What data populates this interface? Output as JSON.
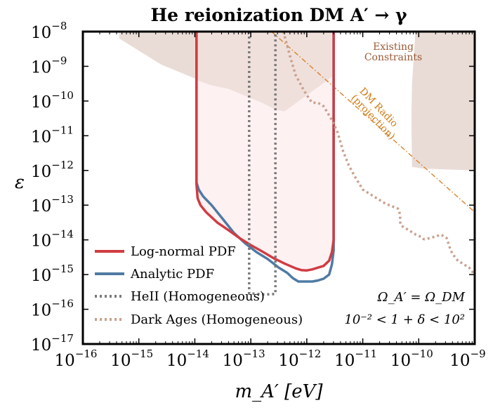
{
  "chart_data": {
    "type": "line",
    "title": "He reionization DM A′ → γ",
    "xlabel": "m_A′ [eV]",
    "ylabel": "ε",
    "x_scale": "log",
    "y_scale": "log",
    "x_log10_range": [
      -16,
      -9
    ],
    "y_log10_range": [
      -17,
      -8
    ],
    "x_ticks": [
      {
        "base": "10",
        "exp": "−16"
      },
      {
        "base": "10",
        "exp": "−15"
      },
      {
        "base": "10",
        "exp": "−14"
      },
      {
        "base": "10",
        "exp": "−13"
      },
      {
        "base": "10",
        "exp": "−12"
      },
      {
        "base": "10",
        "exp": "−11"
      },
      {
        "base": "10",
        "exp": "−10"
      },
      {
        "base": "10",
        "exp": "−9"
      }
    ],
    "y_ticks": [
      {
        "base": "10",
        "exp": "−8"
      },
      {
        "base": "10",
        "exp": "−9"
      },
      {
        "base": "10",
        "exp": "−10"
      },
      {
        "base": "10",
        "exp": "−11"
      },
      {
        "base": "10",
        "exp": "−12"
      },
      {
        "base": "10",
        "exp": "−13"
      },
      {
        "base": "10",
        "exp": "−14"
      },
      {
        "base": "10",
        "exp": "−15"
      },
      {
        "base": "10",
        "exp": "−16"
      },
      {
        "base": "10",
        "exp": "−17"
      }
    ],
    "grid": false,
    "legend_position": "bottom-left",
    "colors": {
      "lognormal": "#d03c42",
      "analytic": "#4f7aa3",
      "heii": "#7a7a7a",
      "darkages": "#c9a08c",
      "constraints": "#e9dcd6",
      "excluded": "#fdeef0",
      "dmradio": "#d9822b"
    },
    "series": [
      {
        "name": "Log-normal PDF",
        "style": "solid",
        "x_log10": [
          -13.97,
          -13.97,
          -13.95,
          -13.9,
          -13.8,
          -13.6,
          -13.4,
          -13.2,
          -13.0,
          -12.8,
          -12.6,
          -12.4,
          -12.2,
          -12.1,
          -12.0,
          -11.9,
          -11.8,
          -11.7,
          -11.6,
          -11.55,
          -11.52,
          -11.52
        ],
        "y_log10": [
          -8.0,
          -12.4,
          -12.8,
          -13.0,
          -13.2,
          -13.5,
          -13.72,
          -13.95,
          -14.15,
          -14.33,
          -14.52,
          -14.68,
          -14.82,
          -14.87,
          -14.88,
          -14.85,
          -14.8,
          -14.75,
          -14.6,
          -14.35,
          -14.0,
          -8.0
        ]
      },
      {
        "name": "Analytic PDF",
        "style": "solid",
        "x_log10": [
          -13.97,
          -13.97,
          -13.93,
          -13.85,
          -13.7,
          -13.5,
          -13.3,
          -13.1,
          -12.9,
          -12.7,
          -12.5,
          -12.35,
          -12.25,
          -12.15,
          -12.0,
          -11.9,
          -11.8,
          -11.7,
          -11.6,
          -11.55,
          -11.52,
          -11.52
        ],
        "y_log10": [
          -8.0,
          -12.35,
          -12.55,
          -12.75,
          -13.0,
          -13.4,
          -13.8,
          -14.1,
          -14.35,
          -14.55,
          -14.8,
          -14.95,
          -15.1,
          -15.2,
          -15.2,
          -15.2,
          -15.17,
          -15.12,
          -15.0,
          -14.7,
          -14.3,
          -8.0
        ]
      },
      {
        "name": "HeII (Homogeneous)",
        "style": "dotted",
        "x_log10": [
          -13.03,
          -13.03,
          -12.92,
          -12.78,
          -12.63,
          -12.56,
          -12.56
        ],
        "y_log10": [
          -8.0,
          -15.55,
          -15.55,
          -15.57,
          -15.57,
          -15.55,
          -8.0
        ]
      },
      {
        "name": "Dark Ages (Homogeneous)",
        "style": "dotted",
        "x_log10": [
          -12.41,
          -12.41,
          -12.3,
          -12.2,
          -12.05,
          -11.95,
          -11.9,
          -11.8,
          -11.7,
          -11.55,
          -11.45,
          -11.35,
          -11.25,
          -11.15,
          -11.0,
          -10.8,
          -10.6,
          -10.45,
          -10.37,
          -10.35,
          -10.34,
          -10.33,
          -10.33,
          -10.3,
          -10.2,
          -10.05,
          -9.95,
          -9.92,
          -9.9,
          -9.8,
          -9.6,
          -9.5,
          -9.45,
          -9.4,
          -9.3,
          -9.1,
          -9.0
        ],
        "y_log10": [
          -8.0,
          -8.05,
          -8.7,
          -9.25,
          -9.7,
          -9.95,
          -10.05,
          -10.05,
          -10.15,
          -10.55,
          -10.9,
          -11.45,
          -11.85,
          -12.15,
          -12.55,
          -12.75,
          -12.95,
          -13.05,
          -13.1,
          -13.15,
          -13.25,
          -13.4,
          -13.55,
          -13.6,
          -13.7,
          -13.85,
          -13.92,
          -13.97,
          -13.98,
          -13.95,
          -13.85,
          -13.95,
          -14.2,
          -14.4,
          -14.6,
          -14.8,
          -15.0
        ]
      }
    ],
    "note_lines": [
      "Ω_A′ = Ω_DM",
      "10⁻² < 1 + δ < 10²"
    ],
    "annotations": [
      {
        "text": "Existing",
        "type": "label"
      },
      {
        "text": "Constraints",
        "type": "label"
      },
      {
        "text": "DM Radio",
        "type": "label"
      },
      {
        "text": "(projection)",
        "type": "label"
      }
    ]
  }
}
